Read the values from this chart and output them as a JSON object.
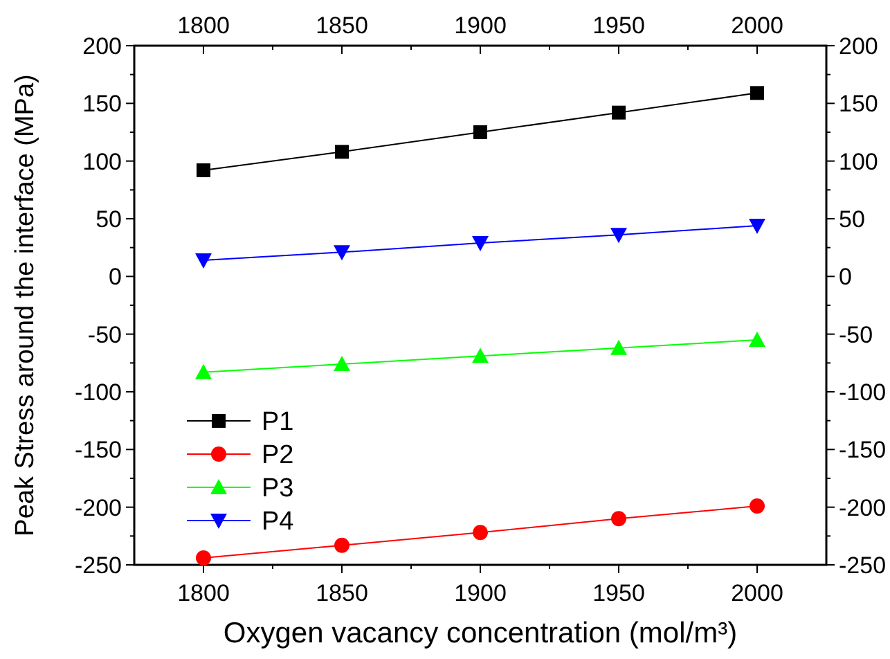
{
  "chart_data": {
    "type": "line",
    "xlabel": "Oxygen vacancy concentration (mol/m³)",
    "ylabel": "Peak Stress around the interface  (MPa)",
    "x": [
      1800,
      1850,
      1900,
      1950,
      2000
    ],
    "xlim": [
      1775,
      2025
    ],
    "xticks": [
      1800,
      {
        "value": 1825,
        "label": null
      },
      1850,
      {
        "value": 1875,
        "label": null
      },
      1900,
      {
        "value": 1925,
        "label": null
      },
      1950,
      {
        "value": 1975,
        "label": null
      },
      2000
    ],
    "x2lim": [
      1775,
      2025
    ],
    "x2ticks": [
      1800,
      {
        "value": 1825,
        "label": null
      },
      1850,
      {
        "value": 1875,
        "label": null
      },
      1900,
      {
        "value": 1925,
        "label": null
      },
      1950,
      {
        "value": 1975,
        "label": null
      },
      2000
    ],
    "ylim": [
      -250,
      200
    ],
    "yticks": [
      -250,
      {
        "value": -225,
        "label": null
      },
      -200,
      {
        "value": -175,
        "label": null
      },
      -150,
      {
        "value": -125,
        "label": null
      },
      -100,
      {
        "value": -75,
        "label": null
      },
      -50,
      {
        "value": -25,
        "label": null
      },
      0,
      {
        "value": 25,
        "label": null
      },
      50,
      {
        "value": 75,
        "label": null
      },
      100,
      {
        "value": 125,
        "label": null
      },
      150,
      {
        "value": 175,
        "label": null
      },
      200
    ],
    "y2lim": [
      -250,
      200
    ],
    "y2ticks": [
      -250,
      {
        "value": -225,
        "label": null
      },
      -200,
      {
        "value": -175,
        "label": null
      },
      -150,
      {
        "value": -125,
        "label": null
      },
      -100,
      {
        "value": -75,
        "label": null
      },
      -50,
      {
        "value": -25,
        "label": null
      },
      0,
      {
        "value": 25,
        "label": null
      },
      50,
      {
        "value": 75,
        "label": null
      },
      100,
      {
        "value": 125,
        "label": null
      },
      150,
      {
        "value": 175,
        "label": null
      },
      200
    ],
    "legend": "bottom left",
    "grid": false,
    "series": [
      {
        "name": "P1",
        "color": "#000000",
        "marker": "square",
        "values": [
          92,
          108,
          125,
          142,
          159
        ]
      },
      {
        "name": "P2",
        "color": "#ff0000",
        "marker": "circle",
        "values": [
          -244,
          -233,
          -222,
          -210,
          -199
        ]
      },
      {
        "name": "P3",
        "color": "#00ff00",
        "marker": "triangle",
        "values": [
          -83,
          -76,
          -69,
          -62,
          -55
        ]
      },
      {
        "name": "P4",
        "color": "#0000ff",
        "marker": "triangle-down",
        "values": [
          14,
          21,
          29,
          36,
          44
        ]
      }
    ]
  }
}
